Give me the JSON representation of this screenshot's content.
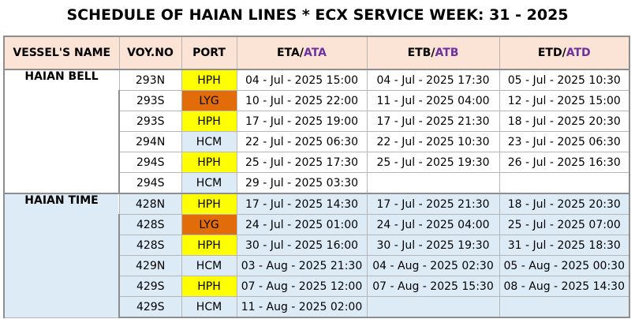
{
  "title": "SCHEDULE OF HAIAN LINES * ECX SERVICE WEEK: 31 - 2025",
  "headers": {
    "vessel": "VESSEL'S NAME",
    "voy": "VOY.NO",
    "port": "PORT",
    "eta": "ETA/",
    "ata": "ATA",
    "etb": "ETB/",
    "atb": "ATB",
    "etd": "ETD/",
    "atd": "ATD"
  },
  "port_colors": {
    "HPH": "#ffff00",
    "LYG": "#e26b0a",
    "HCM": "#ddebf7"
  },
  "groups": [
    {
      "vessel": "HAIAN BELL",
      "rows": [
        {
          "voy": "293N",
          "port": "HPH",
          "eta": "04 - Jul - 2025 15:00",
          "etb": "04 - Jul - 2025 17:30",
          "etd": "05 - Jul - 2025 10:30"
        },
        {
          "voy": "293S",
          "port": "LYG",
          "eta": "10 - Jul - 2025 22:00",
          "etb": "11 - Jul - 2025 04:00",
          "etd": "12 - Jul - 2025 15:00"
        },
        {
          "voy": "293S",
          "port": "HPH",
          "eta": "17 - Jul - 2025 19:00",
          "etb": "17 - Jul - 2025 21:30",
          "etd": "18 - Jul - 2025 20:30"
        },
        {
          "voy": "294N",
          "port": "HCM",
          "eta": "22 - Jul - 2025 06:30",
          "etb": "22 - Jul - 2025 10:30",
          "etd": "23 - Jul - 2025 06:30"
        },
        {
          "voy": "294S",
          "port": "HPH",
          "eta": "25 - Jul - 2025 17:30",
          "etb": "25 - Jul - 2025 19:30",
          "etd": "26 - Jul - 2025 16:30"
        },
        {
          "voy": "294S",
          "port": "HCM",
          "eta": "29 - Jul - 2025 03:30",
          "etb": "",
          "etd": ""
        }
      ]
    },
    {
      "vessel": "HAIAN TIME",
      "rows": [
        {
          "voy": "428N",
          "port": "HPH",
          "eta": "17 - Jul - 2025 14:30",
          "etb": "17 - Jul - 2025 21:30",
          "etd": "18 - Jul - 2025 20:30"
        },
        {
          "voy": "428S",
          "port": "LYG",
          "eta": "24 - Jul - 2025 01:00",
          "etb": "24 - Jul - 2025 04:00",
          "etd": "25 - Jul - 2025 07:00"
        },
        {
          "voy": "428S",
          "port": "HPH",
          "eta": "30 - Jul - 2025 16:00",
          "etb": "30 - Jul - 2025 19:30",
          "etd": "31 - Jul - 2025 18:30"
        },
        {
          "voy": "429N",
          "port": "HCM",
          "eta": "03 - Aug - 2025 21:30",
          "etb": "04 - Aug - 2025 02:30",
          "etd": "05 - Aug - 2025 00:30"
        },
        {
          "voy": "429S",
          "port": "HPH",
          "eta": "07 - Aug - 2025 12:00",
          "etb": "07 - Aug - 2025 15:30",
          "etd": "08 - Aug - 2025 14:30"
        },
        {
          "voy": "429S",
          "port": "HCM",
          "eta": "11 - Aug - 2025 02:00",
          "etb": "",
          "etd": ""
        }
      ]
    }
  ]
}
